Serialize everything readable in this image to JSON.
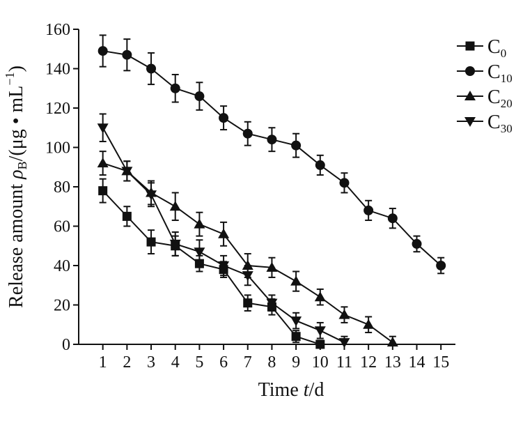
{
  "chart_data": {
    "type": "line",
    "title": "",
    "xlabel": {
      "prefix": "Time ",
      "var": "t",
      "suffix": "/d"
    },
    "ylabel": {
      "prefix": "Release amount ",
      "var": "ρ",
      "var_sub": "B",
      "unit": "/(μg • mL",
      "unit_sup": "−1",
      "unit_close": ")"
    },
    "xlim": [
      0,
      15.6
    ],
    "ylim": [
      0,
      160
    ],
    "xticks": [
      1,
      2,
      3,
      4,
      5,
      6,
      7,
      8,
      9,
      10,
      11,
      12,
      13,
      14,
      15
    ],
    "yticks": [
      0,
      20,
      40,
      60,
      80,
      100,
      120,
      140,
      160
    ],
    "legend_position": "top-right",
    "series": [
      {
        "name": "C",
        "sub": "0",
        "marker": "square",
        "x": [
          1,
          2,
          3,
          4,
          5,
          6,
          7,
          8,
          9,
          10
        ],
        "y": [
          78,
          65,
          52,
          50,
          41,
          38,
          21,
          19,
          4,
          0
        ],
        "err": [
          6,
          5,
          6,
          5,
          4,
          4,
          4,
          4,
          3,
          2
        ]
      },
      {
        "name": "C",
        "sub": "10",
        "marker": "circle",
        "x": [
          1,
          2,
          3,
          4,
          5,
          6,
          7,
          8,
          9,
          10,
          11,
          12,
          13,
          14,
          15
        ],
        "y": [
          149,
          147,
          140,
          130,
          126,
          115,
          107,
          104,
          101,
          91,
          82,
          68,
          64,
          51,
          40
        ],
        "err": [
          8,
          8,
          8,
          7,
          7,
          6,
          6,
          6,
          6,
          5,
          5,
          5,
          5,
          4,
          4
        ]
      },
      {
        "name": "C",
        "sub": "20",
        "marker": "triangle-up",
        "x": [
          1,
          2,
          3,
          4,
          5,
          6,
          7,
          8,
          9,
          10,
          11,
          12,
          13
        ],
        "y": [
          92,
          88,
          77,
          70,
          61,
          56,
          40,
          39,
          32,
          24,
          15,
          10,
          1
        ],
        "err": [
          6,
          5,
          6,
          7,
          6,
          6,
          6,
          5,
          5,
          4,
          4,
          4,
          3
        ]
      },
      {
        "name": "C",
        "sub": "30",
        "marker": "triangle-down",
        "x": [
          1,
          2,
          3,
          4,
          5,
          6,
          7,
          8,
          9,
          10,
          11
        ],
        "y": [
          110,
          88,
          76,
          51,
          47,
          40,
          35,
          21,
          12,
          7,
          1
        ],
        "err": [
          7,
          5,
          6,
          6,
          6,
          5,
          5,
          4,
          4,
          4,
          3
        ]
      }
    ]
  }
}
